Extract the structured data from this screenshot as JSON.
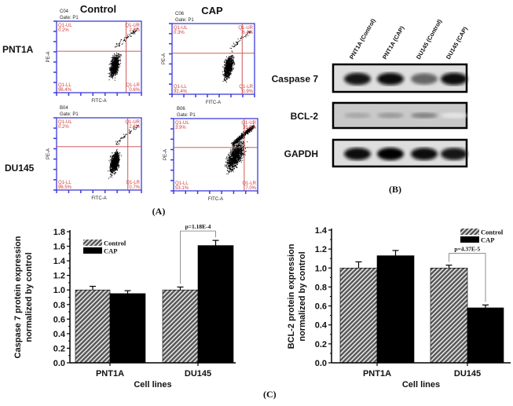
{
  "panel_a": {
    "label": "(A)",
    "col_headers": [
      "Control",
      "CAP"
    ],
    "row_headers": [
      "PNT1A",
      "DU145"
    ],
    "x_axis_label": "FITC-A",
    "y_axis_label": "PE-A",
    "gate": "Gate: P1",
    "plots": [
      {
        "sample": "C04",
        "UL_name": "Q1-UL",
        "UL": "0.2%",
        "UR_name": "Q1-UR",
        "UR": "2.8%",
        "LL_name": "Q1-LL",
        "LL": "96.4%",
        "LR_name": "Q1-LR",
        "LR": "0.6%"
      },
      {
        "sample": "C06",
        "UL_name": "Q1-UL",
        "UL": "0.3%",
        "UR_name": "Q1-UR",
        "UR": "6.4%",
        "LL_name": "Q1-LL",
        "LL": "92.4%",
        "LR_name": "Q1-LR",
        "LR": "0.9%"
      },
      {
        "sample": "B04",
        "UL_name": "Q1-UL",
        "UL": "0.2%",
        "UR_name": "Q1-UR",
        "UR": "2.6%",
        "LL_name": "Q1-LL",
        "LL": "96.5%",
        "LR_name": "Q1-LR",
        "LR": "0.7%"
      },
      {
        "sample": "B06",
        "UL_name": "Q1-UL",
        "UL": "3.9%",
        "UR_name": "Q1-UR",
        "UR": "35.9%",
        "LL_name": "Q1-LL",
        "LL": "53.1%",
        "LR_name": "Q1-LR",
        "LR": "7.0%"
      }
    ],
    "axis_color": "#3b3bdc",
    "gate_color": "#c84848"
  },
  "panel_b": {
    "label": "(B)",
    "lanes": [
      "PNT1A (Control)",
      "PNT1A (CAP)",
      "DU145 (Control)",
      "DU145 (CAP)"
    ],
    "blots": [
      {
        "name": "Caspase 7",
        "intensity": [
          0.9,
          0.95,
          0.6,
          0.95
        ]
      },
      {
        "name": "BCL-2",
        "intensity": [
          0.35,
          0.4,
          0.5,
          0.1
        ]
      },
      {
        "name": "GAPDH",
        "intensity": [
          0.95,
          1.0,
          0.95,
          0.9
        ]
      }
    ]
  },
  "panel_c_label": "(C)",
  "chart_data": [
    {
      "type": "bar",
      "categories": [
        "PNT1A",
        "DU145"
      ],
      "xlabel": "Cell lines",
      "ylabel": "Caspase 7 protein expression normalized by control",
      "ylim": [
        0,
        1.8
      ],
      "yticks": [
        "0.0",
        "0.2",
        "0.4",
        "0.6",
        "0.8",
        "1.0",
        "1.2",
        "1.4",
        "1.6",
        "1.8"
      ],
      "legend_position": "top-left",
      "series": [
        {
          "name": "Control",
          "values": [
            1.0,
            1.0
          ],
          "errors": [
            0.05,
            0.04
          ],
          "fill": "hatched"
        },
        {
          "name": "CAP",
          "values": [
            0.95,
            1.61
          ],
          "errors": [
            0.04,
            0.07
          ],
          "fill": "#000000"
        }
      ],
      "annotation": {
        "text": "p=1.18E-4",
        "category": "DU145"
      }
    },
    {
      "type": "bar",
      "categories": [
        "PNT1A",
        "DU145"
      ],
      "xlabel": "Cell lines",
      "ylabel": "BCL-2 protein expression normalized by control",
      "ylim": [
        0,
        1.4
      ],
      "yticks": [
        "0.0",
        "0.2",
        "0.4",
        "0.6",
        "0.8",
        "1.0",
        "1.2",
        "1.4"
      ],
      "legend_position": "top-right",
      "series": [
        {
          "name": "Control",
          "values": [
            1.0,
            1.0
          ],
          "errors": [
            0.065,
            0.03
          ],
          "fill": "hatched"
        },
        {
          "name": "CAP",
          "values": [
            1.13,
            0.58
          ],
          "errors": [
            0.055,
            0.03
          ],
          "fill": "#000000"
        }
      ],
      "annotation": {
        "text": "p=4.37E-5",
        "category": "DU145"
      }
    }
  ]
}
